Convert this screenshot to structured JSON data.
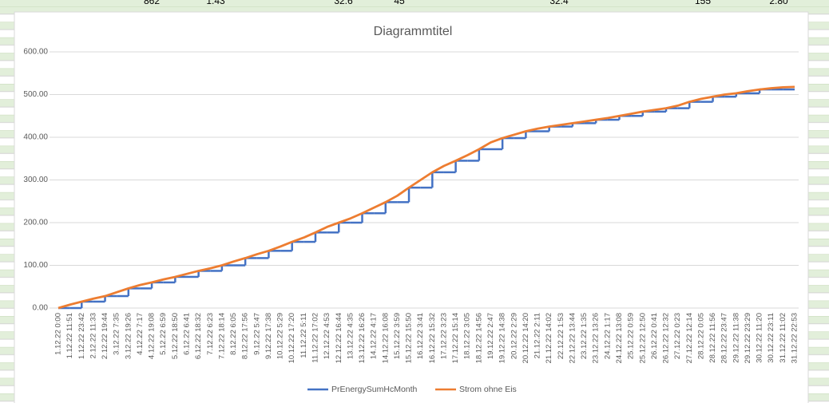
{
  "spreadsheet": {
    "top_row": [
      "862",
      "1.43",
      "32.6",
      "45",
      "32.4",
      "155",
      "2.80"
    ]
  },
  "chart_data": {
    "type": "line",
    "title": "Diagrammtitel",
    "categories": [
      "1.12.22 0:00",
      "1.12.22 11:51",
      "1.12.22 23:42",
      "2.12.22 11:33",
      "2.12.22 19:44",
      "3.12.22 7:35",
      "3.12.22 19:26",
      "4.12.22 7:17",
      "4.12.22 19:08",
      "5.12.22 6:59",
      "5.12.22 18:50",
      "6.12.22 6:41",
      "6.12.22 18:32",
      "7.12.22 6:23",
      "7.12.22 18:14",
      "8.12.22 6:05",
      "8.12.22 17:56",
      "9.12.22 5:47",
      "9.12.22 17:38",
      "10.12.22 5:29",
      "10.12.22 17:20",
      "11.12.22 5:11",
      "11.12.22 17:02",
      "12.12.22 4:53",
      "12.12.22 16:44",
      "13.12.22 4:35",
      "13.12.22 16:26",
      "14.12.22 4:17",
      "14.12.22 16:08",
      "15.12.22 3:59",
      "15.12.22 15:50",
      "16.12.22 3:41",
      "16.12.22 15:32",
      "17.12.22 3:23",
      "17.12.22 15:14",
      "18.12.22 3:05",
      "18.12.22 14:56",
      "19.12.22 2:47",
      "19.12.22 14:38",
      "20.12.22 2:29",
      "20.12.22 14:20",
      "21.12.22 2:11",
      "21.12.22 14:02",
      "22.12.22 1:53",
      "22.12.22 13:44",
      "23.12.22 1:35",
      "23.12.22 13:26",
      "24.12.22 1:17",
      "24.12.22 13:08",
      "25.12.22 0:59",
      "25.12.22 12:50",
      "26.12.22 0:41",
      "26.12.22 12:32",
      "27.12.22 0:23",
      "27.12.22 12:14",
      "28.12.22 0:05",
      "28.12.22 11:56",
      "28.12.22 23:47",
      "29.12.22 11:38",
      "29.12.22 23:29",
      "30.12.22 11:20",
      "30.12.22 23:11",
      "31.12.22 11:02",
      "31.12.22 22:53"
    ],
    "series": [
      {
        "name": "PrEnergySumHcMonth",
        "color": "#4472c4",
        "step": true,
        "values": [
          0,
          0,
          15,
          15,
          28,
          28,
          46,
          46,
          60,
          60,
          73,
          73,
          87,
          87,
          100,
          100,
          117,
          117,
          134,
          134,
          155,
          155,
          177,
          177,
          200,
          200,
          222,
          222,
          248,
          248,
          282,
          282,
          318,
          318,
          345,
          345,
          372,
          372,
          398,
          398,
          414,
          414,
          425,
          425,
          433,
          433,
          441,
          441,
          450,
          450,
          460,
          460,
          468,
          468,
          483,
          483,
          495,
          495,
          503,
          503,
          512,
          512,
          512,
          512
        ]
      },
      {
        "name": "Strom ohne Eis",
        "color": "#ed7d31",
        "values": [
          0,
          8,
          15,
          22,
          28,
          37,
          46,
          54,
          60,
          67,
          73,
          80,
          87,
          93,
          100,
          109,
          117,
          126,
          134,
          144,
          155,
          165,
          177,
          190,
          200,
          210,
          222,
          235,
          248,
          263,
          282,
          300,
          318,
          333,
          345,
          358,
          372,
          388,
          398,
          406,
          414,
          420,
          425,
          429,
          433,
          437,
          441,
          445,
          450,
          455,
          460,
          464,
          468,
          474,
          483,
          490,
          495,
          500,
          503,
          508,
          512,
          515,
          517,
          518
        ]
      }
    ],
    "ylim": [
      0,
      600
    ],
    "yticks": [
      {
        "value": 0,
        "label": "0.00"
      },
      {
        "value": 100,
        "label": "100.00"
      },
      {
        "value": 200,
        "label": "200.00"
      },
      {
        "value": 300,
        "label": "300.00"
      },
      {
        "value": 400,
        "label": "400.00"
      },
      {
        "value": 500,
        "label": "500.00"
      },
      {
        "value": 600,
        "label": "600.00"
      }
    ],
    "grid": true,
    "legend": "bottom"
  }
}
